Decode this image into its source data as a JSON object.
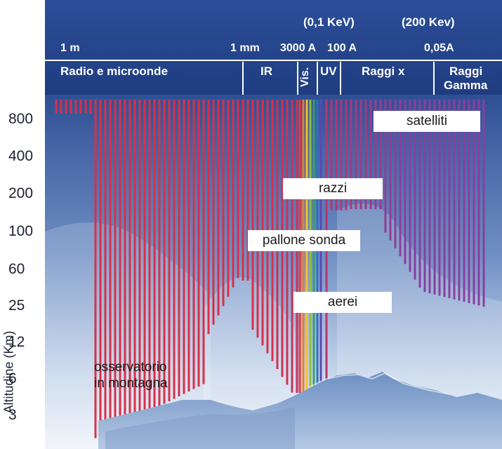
{
  "header": {
    "energy_labels": [
      "(0,1 KeV)",
      "(200 Kev)"
    ],
    "wavelength_labels": [
      "1 m",
      "1 mm",
      "3000 A",
      "100 A",
      "0,05A"
    ],
    "bands": [
      "Radio e microonde",
      "IR",
      "Vis.",
      "UV",
      "Raggi x",
      "Raggi",
      "Gamma"
    ]
  },
  "y_axis": {
    "label": "Altitudine (Km)",
    "ticks": [
      "800",
      "400",
      "200",
      "100",
      "60",
      "25",
      "12",
      "6",
      "3"
    ]
  },
  "platforms": {
    "satellites": "satelliti",
    "rockets": "razzi",
    "balloon": "pallone sonda",
    "aircraft": "aerei",
    "mountain": [
      "osservatorio",
      "in montagna"
    ]
  },
  "colors": {
    "header_top": "#2c4f99",
    "header_bottom": "#1f3c80",
    "sky_top": "#2f4f95",
    "sky_bottom": "#e6eef8",
    "red_lines": "#d83048",
    "purple_lines": "#8a3ea0",
    "mountain": "#8da9cf"
  }
}
